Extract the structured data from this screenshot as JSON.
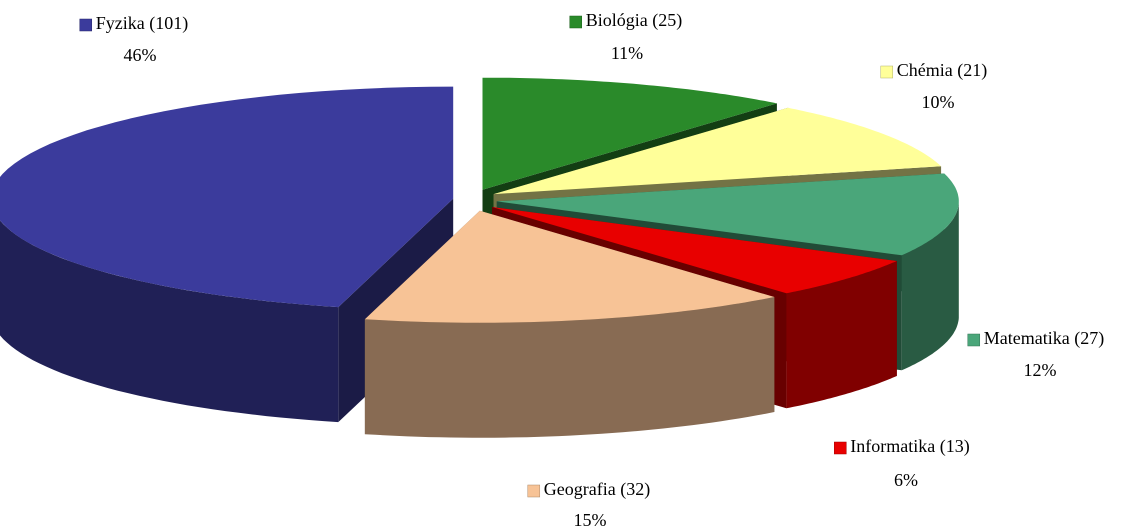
{
  "chart_data": {
    "type": "pie",
    "categories": [
      "Biológia (25)",
      "Chémia (21)",
      "Matematika (27)",
      "Informatika (13)",
      "Geografia (32)",
      "Fyzika (101)"
    ],
    "values": [
      11,
      10,
      12,
      6,
      15,
      46
    ],
    "value_labels": [
      "11%",
      "10%",
      "12%",
      "6%",
      "15%",
      "46%"
    ],
    "colors": [
      "#2a8a2a",
      "#ffff99",
      "#4aa67a",
      "#e80000",
      "#f7c396",
      "#3b3b9c"
    ]
  }
}
